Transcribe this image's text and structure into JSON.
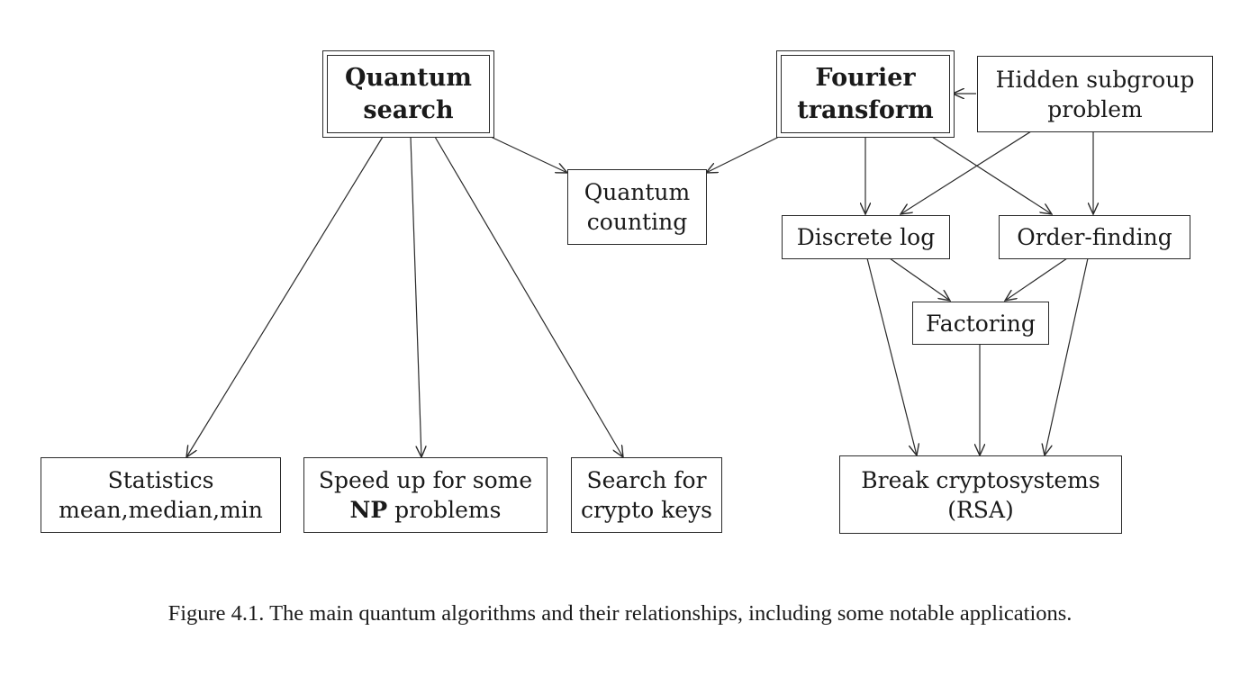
{
  "nodes": {
    "quantum_search": {
      "line1": "Quantum",
      "line2": "search"
    },
    "fourier_transform": {
      "line1": "Fourier",
      "line2": "transform"
    },
    "hidden_subgroup": {
      "line1": "Hidden subgroup",
      "line2": "problem"
    },
    "quantum_counting": {
      "line1": "Quantum",
      "line2": "counting"
    },
    "discrete_log": {
      "line1": "Discrete log"
    },
    "order_finding": {
      "line1": "Order-finding"
    },
    "factoring": {
      "line1": "Factoring"
    },
    "statistics": {
      "line1": "Statistics",
      "line2": "mean,median,min"
    },
    "speed_up_np": {
      "line1": "Speed up for some",
      "line2_bold": "NP",
      "line2_rest": " problems"
    },
    "search_crypto": {
      "line1": "Search for",
      "line2": "crypto keys"
    },
    "break_crypto": {
      "line1": "Break cryptosystems",
      "line2": "(RSA)"
    }
  },
  "edges": [
    {
      "from": "quantum_search",
      "to": "quantum_counting"
    },
    {
      "from": "fourier_transform",
      "to": "quantum_counting"
    },
    {
      "from": "hidden_subgroup",
      "to": "fourier_transform"
    },
    {
      "from": "quantum_search",
      "to": "statistics"
    },
    {
      "from": "quantum_search",
      "to": "speed_up_np"
    },
    {
      "from": "quantum_search",
      "to": "search_crypto"
    },
    {
      "from": "fourier_transform",
      "to": "discrete_log"
    },
    {
      "from": "fourier_transform",
      "to": "order_finding"
    },
    {
      "from": "hidden_subgroup",
      "to": "discrete_log"
    },
    {
      "from": "hidden_subgroup",
      "to": "order_finding"
    },
    {
      "from": "discrete_log",
      "to": "factoring"
    },
    {
      "from": "order_finding",
      "to": "factoring"
    },
    {
      "from": "discrete_log",
      "to": "break_crypto"
    },
    {
      "from": "order_finding",
      "to": "break_crypto"
    },
    {
      "from": "factoring",
      "to": "break_crypto"
    }
  ],
  "caption": "Figure 4.1. The main quantum algorithms and their relationships, including some notable applications."
}
